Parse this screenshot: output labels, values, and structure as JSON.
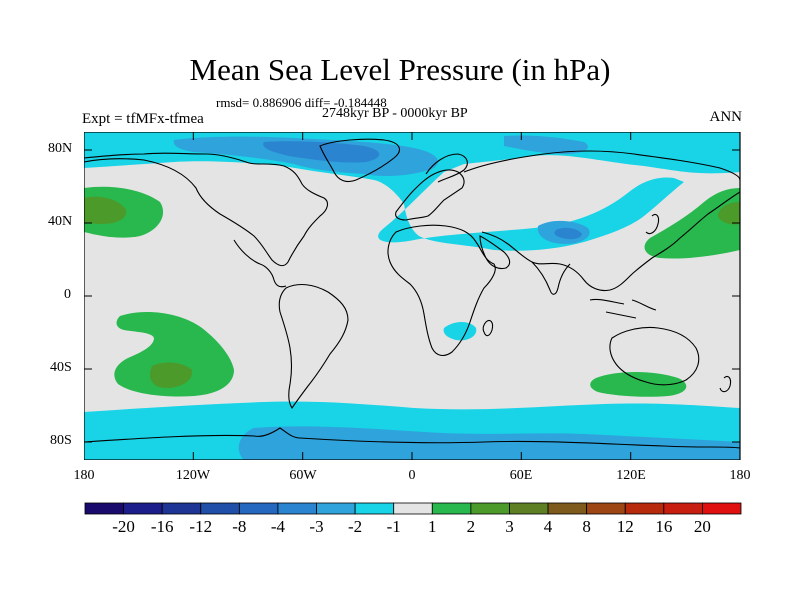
{
  "title": "Mean Sea Level Pressure (in hPa)",
  "stats": "rmsd= 0.886906 diff= -0.184448",
  "period": "2748kyr BP - 0000kyr BP",
  "experiment": "Expt = tfMFx-tfmea",
  "season": "ANN",
  "axes": {
    "x_ticks": [
      "180",
      "120W",
      "60W",
      "0",
      "60E",
      "120E",
      "180"
    ],
    "y_ticks": [
      "80N",
      "40N",
      "0",
      "40S",
      "80S"
    ]
  },
  "colorbar": {
    "labels": [
      "-20",
      "-16",
      "-12",
      "-8",
      "-4",
      "-3",
      "-2",
      "-1",
      "1",
      "2",
      "3",
      "4",
      "8",
      "12",
      "16",
      "20"
    ],
    "colors": [
      "#1a0a6e",
      "#1c1e8c",
      "#1f3596",
      "#1f4fa8",
      "#2468c0",
      "#2a84cf",
      "#2ea3dc",
      "#19d3e6",
      "#e4e4e4",
      "#28b84e",
      "#4c9a2a",
      "#5e7f24",
      "#7e5a1c",
      "#9e4614",
      "#b82a0c",
      "#c81e10",
      "#e01010"
    ]
  },
  "chart_data": {
    "type": "heatmap",
    "title": "Mean Sea Level Pressure (in hPa)",
    "units": "hPa",
    "xlim": [
      -180,
      180
    ],
    "ylim": [
      -90,
      90
    ],
    "levels": [
      -20,
      -16,
      -12,
      -8,
      -4,
      -3,
      -2,
      -1,
      1,
      2,
      3,
      4,
      8,
      12,
      16,
      20
    ]
  },
  "colors": {
    "neutral": "#e4e4e4",
    "cyan": "#19d3e6",
    "light_blue": "#2ea3dc",
    "mid_blue": "#2a84cf",
    "green": "#28b84e",
    "dark_green": "#4c9a2a"
  }
}
